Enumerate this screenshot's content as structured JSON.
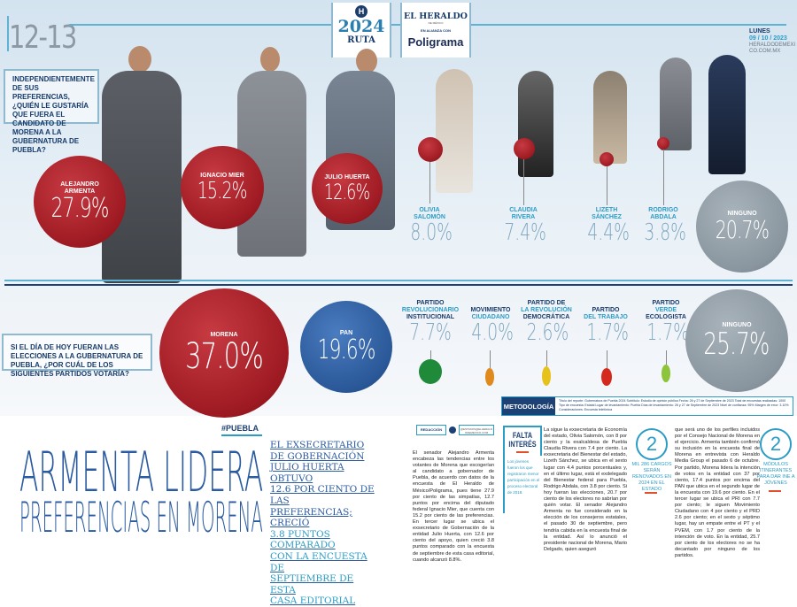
{
  "header": {
    "page_numbers": "12-13",
    "logo_top": "H",
    "logo_year": "2024",
    "logo_ruta": "RUTA",
    "brand": "EL HERALDO",
    "brand_sub": "DE MÉXICO",
    "alliance": "EN ALIANZA CON",
    "partner": "Poligrama",
    "date_day": "LUNES",
    "date": "09 / 10 / 2023",
    "site": "HERALDODEMEXICO.COM.MX"
  },
  "question_candidates": "INDEPENDIENTEMENTE DE SUS PREFERENCIAS, ¿QUIÉN LE GUSTARÍA QUE FUERA EL CANDIDATO DE MORENA A LA GUBERNATURA DE PUEBLA?",
  "candidates": [
    {
      "name": "ALEJANDRO ARMENTA",
      "pct": "27.9%"
    },
    {
      "name": "IGNACIO MIER",
      "pct": "15.2%"
    },
    {
      "name": "JULIO HUERTA",
      "pct": "12.6%"
    },
    {
      "first": "OLIVIA",
      "last": "SALOMÓN",
      "pct": "8.0%"
    },
    {
      "first": "CLAUDIA",
      "last": "RIVERA",
      "pct": "7.4%"
    },
    {
      "first": "LIZETH",
      "last": "SÁNCHEZ",
      "pct": "4.4%"
    },
    {
      "first": "RODRIGO",
      "last": "ABDALA",
      "pct": "3.8%"
    },
    {
      "name": "NINGUNO",
      "pct": "20.7%"
    }
  ],
  "question_parties": "SI EL DÍA DE HOY FUERAN LAS ELECCIONES A LA GUBERNATURA DE PUEBLA, ¿POR CUÁL DE LOS SIGUIENTES PARTIDOS VOTARÍA?",
  "parties": [
    {
      "name": "MORENA",
      "pct": "37.0%"
    },
    {
      "name": "PAN",
      "pct": "19.6%"
    },
    {
      "l1": "PARTIDO",
      "l2": "REVOLUCIONARIO",
      "l3": "INSTITUCIONAL",
      "pct": "7.7%"
    },
    {
      "l1": "MOVIMIENTO",
      "l2": "CIUDADANO",
      "pct": "4.0%"
    },
    {
      "l1": "PARTIDO DE",
      "l2": "LA REVOLUCIÓN",
      "l3": "DEMOCRÁTICA",
      "pct": "2.6%"
    },
    {
      "l1": "PARTIDO",
      "l2": "DEL TRABAJO",
      "pct": "1.7%"
    },
    {
      "l1": "PARTIDO",
      "l2": "VERDE",
      "l3": "ECOLOGISTA",
      "pct": "1.7%"
    },
    {
      "name": "NINGUNO",
      "pct": "25.7%"
    }
  ],
  "methodology": {
    "label": "METODOLOGÍA",
    "text": "Título del reporte: Gubernatura de Puebla 2024 Subtítulo: Estudio de opinión pública Fecha: 26 y 27 de Septiembre de 2023 Total de encuestas realizadas: 1000 Tipo de encuesta: Estatal Lugar de levantamiento: Puebla Días de levantamiento: 26 y 27 de Septiembre de 2023 Nivel de confianza: 95% Margen de error: 3.10% Consideraciones: Encuesta telefónica"
  },
  "article": {
    "tag": "#PUEBLA",
    "headline1": "ARMENTA LIDERA",
    "headline2": "PREFERENCIAS EN MORENA",
    "deck": [
      "EL EXSECRETARIO",
      "DE GOBERNACIÓN",
      "JULIO HUERTA OBTUVO",
      "12.6 POR CIENTO DE LAS",
      "PREFERENCIAS; CRECIÓ",
      "3.8 PUNTOS COMPARADO",
      "CON LA ENCUESTA DE",
      "SEPTIEMBRE DE ESTA",
      "CASA EDITORIAL"
    ],
    "byline": "REDACCIÓN",
    "byline_handle": "@ESTADOS@ELHERALDODEMEXICO.COM",
    "col1": "El senador Alejandro Armenta encabeza las tendencias entre los votantes de Morena que escogerían al candidato a gobernador de Puebla, de acuerdo con datos de la encuesta de El Heraldo de México/Poligrama, pues tiene 27.9 por ciento de las simpatías, 12.7 puntos por encima del diputado federal Ignacio Mier, que cuenta con 15.2 por ciento de las preferencias. En tercer lugar se ubica el exsecretario de Gobernación de la entidad Julio Huerta, con 12.6 por ciento del apoyo, quien creció 3.8 puntos comparado con la encuesta de septiembre de esta casa editorial, cuando alcanzó 8.8%.",
    "sidebar_title": "FALTA INTERÉS",
    "sidebar_text": "Los jóvenes fueron los que registraron menor participación en el proceso electoral de 2018.",
    "col2": "La sigue la exsecretaria de Economía del estado, Olivia Salomón, con 8 por ciento y la exalcaldesa de Puebla Claudia Rivera con 7.4 por ciento. La exsecretaria del Bienestar del estado, Lizeth Sánchez, se ubica en el sexto lugar con 4.4 puntos porcentuales y, en el último lugar, está el exdelegado del Bienestar federal para Puebla, Rodrigo Abdala, con 3.8 por ciento. Si hoy fueran las elecciones, 20.7 por ciento de los electores no sabrían por quién votar. El senador Alejandro Armenta no fue considerado en la elección de los consejeros estatales, el pasado 30 de septiembre, pero tendría cabida en la encuesta final de la entidad. Así lo anunció el presidente nacional de Morena, Mario Delgado, quien aseguró",
    "stat1_num": "2",
    "stat1_text": "MIL 286 CARGOS SERÁN RENOVADOS EN 2024 EN EL ESTADO",
    "col3": "que será uno de los perfiles incluidos por el Consejo Nacional de Morena en el ejercicio. Armenta también confirmó su inclusión en la encuesta final de Morena en entrevista con Heraldo Media Group el pasado 6 de octubre. Por partido, Morena lidera la intención de votos en la entidad con 37 por ciento, 17.4 puntos por encima del PAN que ubica en el segundo lugar de la encuesta con 19.6 por ciento. En el tercer lugar se ubica el PRI con 7.7 por ciento; le siguen Movimiento Ciudadano con 4 por ciento y el PRD 2.6 por ciento; en el sexto y séptimo lugar, hay un empate entre el PT y el PVEM, con 1.7 por ciento de la intención de voto. En la entidad, 25.7 por ciento de los electores no se ha decantado por ninguno de los partidos.",
    "stat2_num": "2",
    "stat2_text": "MÓDULOS ITINERANTES PARA DAR INE A JÓVENES"
  },
  "colors": {
    "morena": "#9e1a22",
    "pan": "#2a5898",
    "ninguno": "#8a969f",
    "accent": "#2b9cc6",
    "headline": "#2a5aa0"
  }
}
